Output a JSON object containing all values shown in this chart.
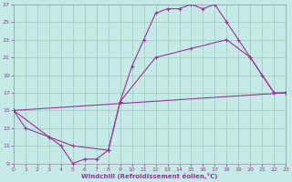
{
  "xlabel": "Windchill (Refroidissement éolien,°C)",
  "xlim": [
    0,
    23
  ],
  "ylim": [
    9,
    27
  ],
  "xticks": [
    0,
    1,
    2,
    3,
    4,
    5,
    6,
    7,
    8,
    9,
    10,
    11,
    12,
    13,
    14,
    15,
    16,
    17,
    18,
    19,
    20,
    21,
    22,
    23
  ],
  "yticks": [
    9,
    11,
    13,
    15,
    17,
    19,
    21,
    23,
    25,
    27
  ],
  "bg_color": "#c5eae5",
  "line_color": "#993399",
  "grid_color": "#99ccbb",
  "curve1_x": [
    0,
    1,
    3,
    4,
    5,
    6,
    7,
    8,
    9,
    10,
    11,
    12,
    13,
    14,
    15,
    16,
    17,
    18,
    19,
    20,
    21,
    22
  ],
  "curve1_y": [
    15,
    13,
    12,
    11,
    9,
    9.5,
    9.5,
    10.5,
    16,
    20,
    23,
    26,
    26.5,
    26.5,
    27,
    26.5,
    27,
    25,
    23,
    21,
    19,
    17
  ],
  "curve2_x": [
    0,
    3,
    5,
    8,
    9,
    12,
    15,
    18,
    20,
    22,
    23
  ],
  "curve2_y": [
    15,
    12,
    11,
    10.5,
    16,
    21,
    22,
    23,
    21,
    17,
    17
  ],
  "curve3_x": [
    0,
    23
  ],
  "curve3_y": [
    15,
    17
  ]
}
